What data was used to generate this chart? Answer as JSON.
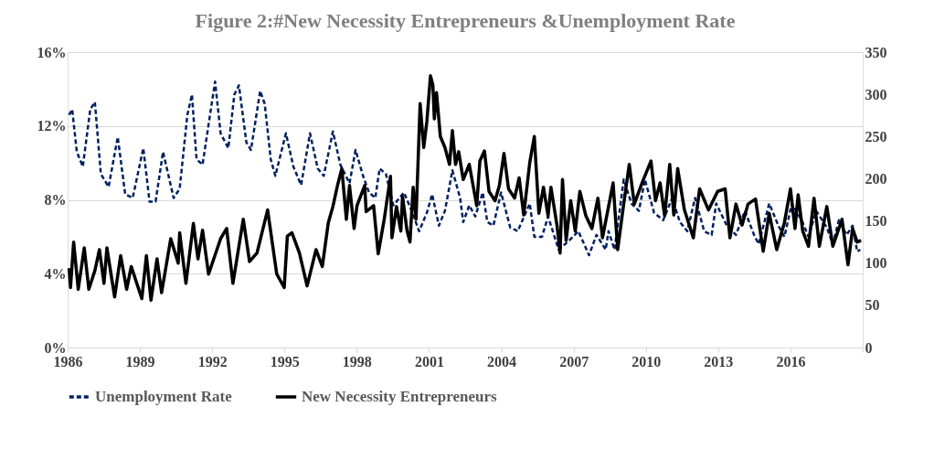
{
  "chart_data": {
    "type": "line",
    "title": "Figure 2:#New Necessity Entrepreneurs &Unemployment Rate",
    "xlim": [
      1986,
      2019
    ],
    "xticks": [
      1986,
      1989,
      1992,
      1995,
      1998,
      2001,
      2004,
      2007,
      2010,
      2013,
      2016,
      {
        "value": 2019,
        "label": null
      }
    ],
    "ylim": [
      0,
      16
    ],
    "yticks": [
      {
        "value": 0,
        "label": "0%"
      },
      {
        "value": 4,
        "label": "4%"
      },
      {
        "value": 8,
        "label": "8%"
      },
      {
        "value": 12,
        "label": "12%"
      },
      {
        "value": 16,
        "label": "16%"
      }
    ],
    "y2lim": [
      0,
      350
    ],
    "y2ticks": [
      0,
      50,
      100,
      150,
      200,
      250,
      300,
      350
    ],
    "grid": "y",
    "legend": "bottom",
    "series": [
      {
        "name": "Unemployment Rate",
        "color": "#002060",
        "line_style": "dashed",
        "x": [
          1986.06,
          1986.19,
          1986.38,
          1986.63,
          1986.94,
          1987.13,
          1987.38,
          1987.7,
          1988.08,
          1988.39,
          1988.7,
          1989.14,
          1989.4,
          1989.65,
          1989.96,
          1990.4,
          1990.65,
          1990.97,
          1991.16,
          1991.35,
          1991.6,
          1991.91,
          1992.12,
          1992.35,
          1992.67,
          1992.92,
          1993.11,
          1993.42,
          1993.61,
          1993.99,
          1994.18,
          1994.43,
          1994.62,
          1995.06,
          1995.37,
          1995.69,
          1996.06,
          1996.38,
          1996.63,
          1997.01,
          1997.32,
          1997.7,
          1997.95,
          1998.26,
          1998.51,
          1998.77,
          1998.95,
          1999.21,
          1999.52,
          1999.96,
          2000.28,
          2000.59,
          2000.91,
          2001.13,
          2001.41,
          2001.66,
          2001.97,
          2002.29,
          2002.42,
          2002.67,
          2002.92,
          2003.23,
          2003.42,
          2003.67,
          2003.99,
          2004.37,
          2004.68,
          2005.18,
          2005.37,
          2005.69,
          2005.94,
          2006.38,
          2006.82,
          2007.2,
          2007.64,
          2007.95,
          2008.33,
          2008.45,
          2008.7,
          2009.08,
          2009.4,
          2009.71,
          2009.96,
          2010.34,
          2010.72,
          2011.09,
          2011.41,
          2011.72,
          2012.04,
          2012.42,
          2012.73,
          2012.92,
          2013.36,
          2013.74,
          2014.11,
          2014.49,
          2014.68,
          2015.12,
          2015.5,
          2015.75,
          2016.06,
          2016.5,
          2016.75,
          2017.07,
          2017.51,
          2017.76,
          2018.01,
          2018.33,
          2018.58,
          2018.77,
          2018.9
        ],
        "values": [
          12.6,
          12.9,
          10.6,
          9.8,
          12.9,
          13.3,
          9.4,
          8.7,
          11.4,
          8.3,
          8.1,
          10.8,
          7.9,
          7.9,
          10.6,
          8.1,
          8.6,
          12.6,
          13.7,
          10.2,
          9.9,
          12.6,
          14.4,
          11.6,
          10.8,
          13.7,
          14.2,
          11.1,
          10.7,
          13.9,
          13.2,
          10.2,
          9.3,
          11.6,
          9.8,
          8.8,
          11.6,
          9.7,
          9.3,
          11.7,
          9.9,
          8.9,
          10.7,
          9.3,
          8.4,
          8.1,
          9.7,
          9.4,
          7.7,
          8.4,
          7.4,
          6.3,
          7.3,
          8.3,
          6.6,
          7.4,
          9.6,
          8.1,
          6.8,
          7.7,
          7.1,
          8.4,
          6.8,
          6.6,
          8.4,
          6.5,
          6.3,
          7.8,
          6.0,
          6.0,
          7.1,
          5.3,
          5.8,
          6.3,
          5.0,
          6.1,
          5.3,
          6.3,
          5.3,
          9.1,
          7.8,
          7.4,
          9.1,
          7.3,
          6.9,
          8.1,
          6.8,
          6.3,
          8.1,
          6.3,
          6.1,
          7.8,
          6.6,
          6.1,
          7.4,
          6.1,
          5.6,
          7.8,
          6.6,
          6.0,
          7.8,
          6.8,
          6.0,
          7.4,
          6.5,
          5.6,
          6.9,
          6.1,
          6.6,
          5.2,
          5.3
        ]
      },
      {
        "name": "New Necessity Entrepreneurs",
        "color": "#000000",
        "line_style": "solid",
        "axis": "y2",
        "x": [
          1986.06,
          1986.12,
          1986.25,
          1986.44,
          1986.69,
          1986.88,
          1987.13,
          1987.32,
          1987.51,
          1987.63,
          1987.95,
          1988.2,
          1988.45,
          1988.64,
          1989.08,
          1989.27,
          1989.46,
          1989.71,
          1989.9,
          1990.28,
          1990.59,
          1990.65,
          1990.91,
          1991.22,
          1991.41,
          1991.6,
          1991.85,
          1992.35,
          1992.6,
          1992.86,
          1993.29,
          1993.55,
          1993.86,
          1994.3,
          1994.68,
          1994.99,
          1995.12,
          1995.31,
          1995.62,
          1995.94,
          1996.31,
          1996.57,
          1996.82,
          1997.01,
          1997.2,
          1997.38,
          1997.57,
          1997.7,
          1997.89,
          1998.01,
          1998.33,
          1998.39,
          1998.7,
          1998.89,
          1999.14,
          1999.4,
          1999.46,
          1999.65,
          1999.83,
          1999.9,
          2000.09,
          2000.21,
          2000.34,
          2000.46,
          2000.63,
          2000.78,
          2000.91,
          2001.06,
          2001.16,
          2001.22,
          2001.31,
          2001.47,
          2001.66,
          2001.85,
          2001.97,
          2002.1,
          2002.23,
          2002.42,
          2002.67,
          2002.98,
          2003.11,
          2003.3,
          2003.49,
          2003.74,
          2003.92,
          2004.11,
          2004.3,
          2004.55,
          2004.74,
          2004.93,
          2005.18,
          2005.37,
          2005.56,
          2005.75,
          2005.94,
          2006.06,
          2006.31,
          2006.44,
          2006.54,
          2006.69,
          2006.88,
          2007.07,
          2007.26,
          2007.51,
          2007.76,
          2008.01,
          2008.2,
          2008.64,
          2008.83,
          2009.08,
          2009.31,
          2009.52,
          2009.84,
          2010.21,
          2010.4,
          2010.59,
          2010.78,
          2010.99,
          2011.16,
          2011.32,
          2011.6,
          2011.97,
          2012.23,
          2012.6,
          2012.98,
          2013.29,
          2013.49,
          2013.74,
          2013.99,
          2014.24,
          2014.55,
          2014.87,
          2015.12,
          2015.43,
          2015.75,
          2016.0,
          2016.19,
          2016.32,
          2016.51,
          2016.75,
          2016.98,
          2017.2,
          2017.51,
          2017.76,
          2018.14,
          2018.39,
          2018.58,
          2018.77,
          2018.93
        ],
        "values": [
          94,
          71,
          125,
          69,
          118,
          69,
          91,
          116,
          76,
          118,
          60,
          109,
          69,
          96,
          58,
          109,
          56,
          105,
          65,
          129,
          100,
          136,
          76,
          147,
          105,
          139,
          87,
          129,
          141,
          76,
          152,
          102,
          112,
          163,
          87,
          71,
          132,
          136,
          112,
          73,
          116,
          96,
          148,
          167,
          192,
          212,
          152,
          192,
          141,
          168,
          192,
          161,
          168,
          111,
          152,
          203,
          130,
          167,
          138,
          179,
          138,
          125,
          190,
          152,
          289,
          237,
          268,
          322,
          311,
          271,
          302,
          250,
          237,
          217,
          257,
          217,
          232,
          199,
          217,
          168,
          221,
          233,
          185,
          174,
          192,
          230,
          188,
          177,
          201,
          157,
          219,
          250,
          159,
          190,
          156,
          190,
          145,
          112,
          199,
          127,
          174,
          138,
          185,
          156,
          141,
          177,
          130,
          195,
          116,
          170,
          217,
          170,
          195,
          221,
          174,
          195,
          156,
          217,
          157,
          212,
          163,
          130,
          188,
          163,
          185,
          188,
          130,
          170,
          145,
          170,
          176,
          114,
          159,
          116,
          148,
          188,
          141,
          181,
          138,
          120,
          177,
          120,
          167,
          120,
          152,
          98,
          141,
          125,
          127
        ]
      }
    ]
  }
}
